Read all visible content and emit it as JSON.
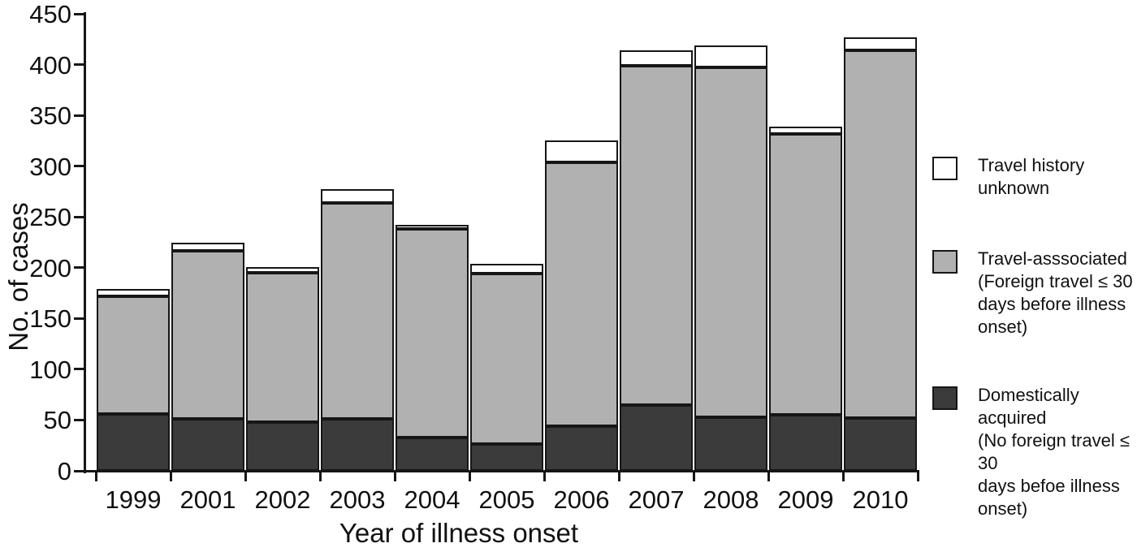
{
  "figure_type": "stacked-bar-chart",
  "legend": {
    "items": [
      {
        "name": "travel-history-unknown",
        "label": "Travel history\nunknown",
        "color": "#ffffff"
      },
      {
        "name": "travel-associated",
        "label": "Travel-asssociated\n(Foreign travel ≤ 30\ndays before illness\nonset)",
        "color": "#b1b1b1"
      },
      {
        "name": "domestically-acquired",
        "label": "Domestically acquired\n(No foreign travel ≤ 30\ndays befoe illness\nonset)",
        "color": "#3b3b3b"
      }
    ]
  },
  "chart_data": {
    "type": "bar",
    "stacked": true,
    "title": "",
    "xlabel": "Year of illness onset",
    "ylabel": "No. of cases",
    "ylim": [
      0,
      450
    ],
    "y_ticks": [
      0,
      50,
      100,
      150,
      200,
      250,
      300,
      350,
      400,
      450
    ],
    "grid": false,
    "legend_position": "right",
    "categories": [
      "1999",
      "2001",
      "2002",
      "2003",
      "2004",
      "2005",
      "2006",
      "2007",
      "2008",
      "2009",
      "2010"
    ],
    "series": [
      {
        "key": "domestically-acquired",
        "name": "Domestically acquired (No foreign travel ≤ 30 days befoe illness onset)",
        "color": "#3b3b3b",
        "values": [
          56,
          51,
          48,
          51,
          33,
          26,
          44,
          65,
          53,
          55,
          52
        ]
      },
      {
        "key": "travel-associated",
        "name": "Travel-asssociated (Foreign travel ≤ 30 days before illness onset)",
        "color": "#b1b1b1",
        "values": [
          116,
          166,
          147,
          213,
          205,
          168,
          260,
          334,
          344,
          277,
          362
        ]
      },
      {
        "key": "travel-history-unknown",
        "name": "Travel history unknown",
        "color": "#ffffff",
        "values": [
          7,
          8,
          6,
          13,
          4,
          10,
          21,
          15,
          22,
          7,
          13
        ]
      }
    ],
    "totals": [
      179,
      225,
      201,
      277,
      242,
      204,
      325,
      414,
      419,
      339,
      427
    ]
  }
}
